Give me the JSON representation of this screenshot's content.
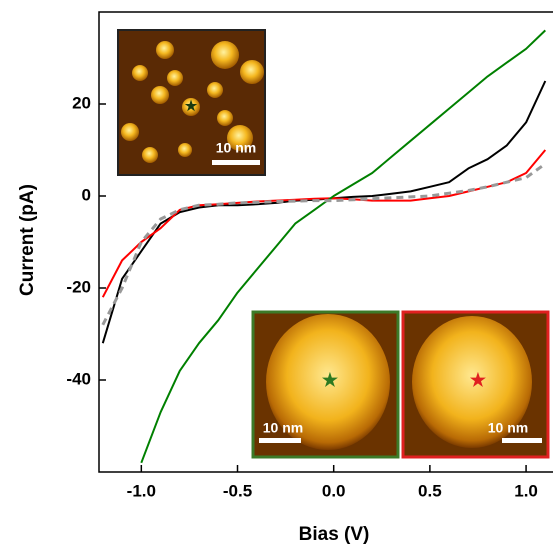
{
  "chart_data": {
    "type": "line",
    "xlabel": "Bias (V)",
    "ylabel": "Current (pA)",
    "x": [
      -1.2,
      -1.1,
      -1.0,
      -0.9,
      -0.8,
      -0.7,
      -0.6,
      -0.5,
      -0.4,
      -0.3,
      -0.2,
      -0.1,
      0.0,
      0.1,
      0.2,
      0.3,
      0.4,
      0.5,
      0.6,
      0.7,
      0.8,
      0.9,
      1.0,
      1.1
    ],
    "series": [
      {
        "color": "#000000",
        "dash": false,
        "values": [
          -32,
          -18,
          -12,
          -6,
          -3.5,
          -2.5,
          -2,
          -2,
          -1.8,
          -1.5,
          -1,
          -0.8,
          -0.5,
          -0.2,
          0,
          0.5,
          1,
          2,
          3,
          6,
          8,
          11,
          16,
          25
        ]
      },
      {
        "color": "#ff0000",
        "dash": false,
        "values": [
          -22,
          -14,
          -10,
          -7,
          -3,
          -2,
          -1.8,
          -1.5,
          -1.2,
          -1,
          -0.8,
          -0.6,
          -0.5,
          -0.7,
          -1,
          -1,
          -1,
          -0.5,
          0,
          1,
          2,
          3,
          5,
          10
        ]
      },
      {
        "color": "#008000",
        "dash": false,
        "values": [
          null,
          null,
          -58,
          -47,
          -38,
          -32,
          -27,
          -21,
          -16,
          -11,
          -6,
          -3,
          0,
          2.5,
          5,
          8.5,
          12,
          15.5,
          19,
          22.5,
          26,
          29,
          32,
          36
        ]
      },
      {
        "color": "#999999",
        "dash": true,
        "values": [
          -28,
          -20,
          -10,
          -5,
          -3,
          -2,
          -1.8,
          -1.5,
          -1.4,
          -1.2,
          -1.1,
          -1,
          -1,
          -0.8,
          -0.6,
          -0.4,
          -0.2,
          0,
          0.6,
          1.2,
          2,
          3,
          4,
          7
        ]
      }
    ],
    "xlim": [
      -1.22,
      1.14
    ],
    "ylim": [
      -60,
      40
    ],
    "xticks": [
      {
        "value": -1.0,
        "label": "-1.0"
      },
      -0.5,
      {
        "value": 0.0,
        "label": "0.0"
      },
      0.5,
      {
        "value": 1.0,
        "label": "1.0"
      }
    ],
    "yticks": [
      -40,
      -20,
      0,
      20
    ],
    "annotations": [
      "10 nm",
      "10 nm",
      "10 nm"
    ]
  }
}
